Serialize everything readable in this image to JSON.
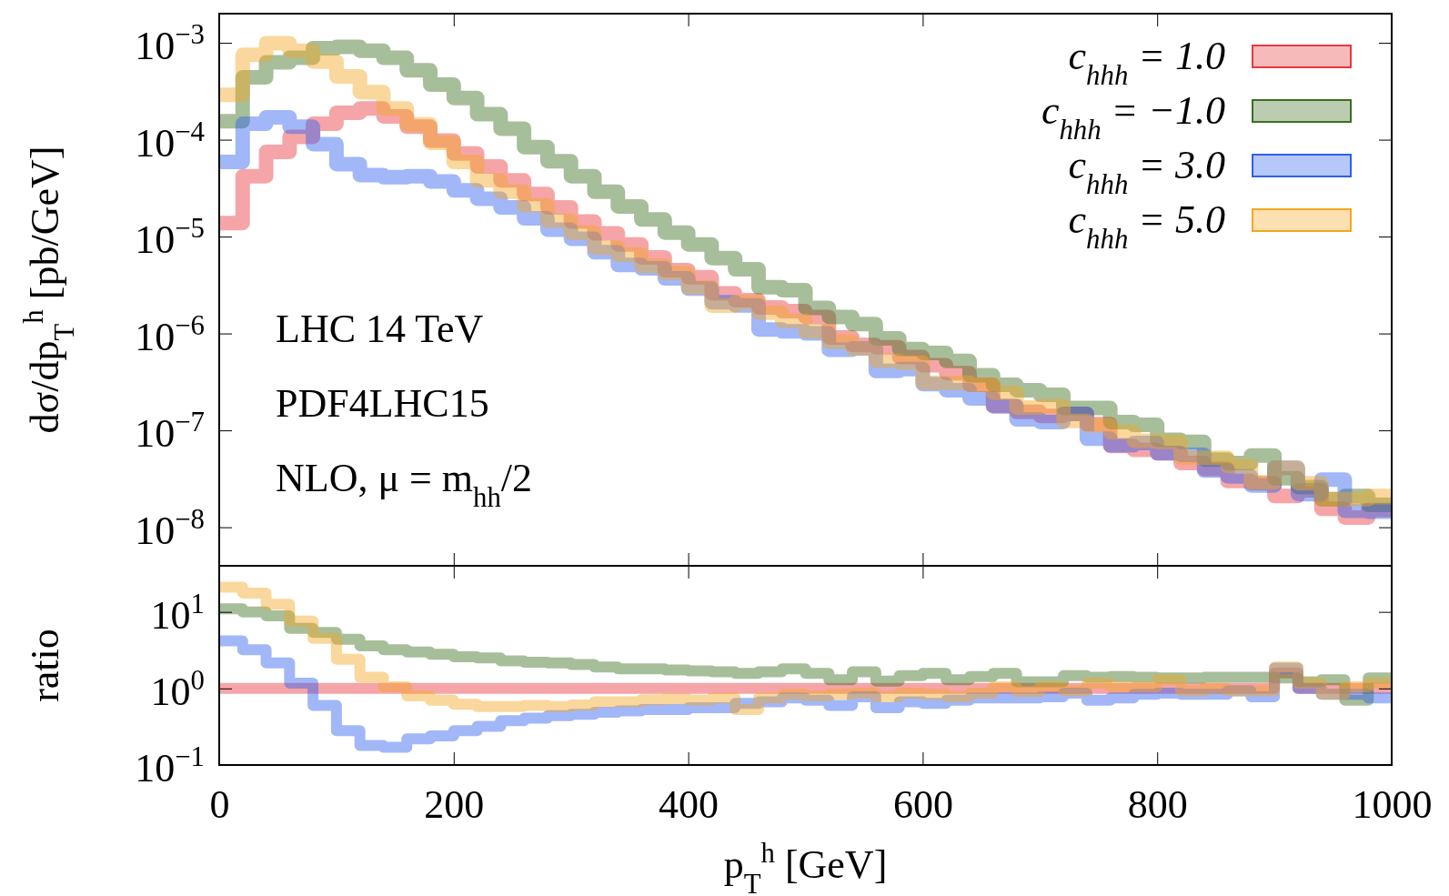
{
  "chart_data": [
    {
      "type": "histogram",
      "ylabel": "dσ/dp$_{T}$$^{h}$ [pb/GeV]",
      "log": true,
      "legend": "top right",
      "tick_labels": "y",
      "annotations": [
        "LHC 14 TeV",
        "PDF4LHC15",
        "NLO, μ = m$_{hh}$/2"
      ],
      "bins": [
        0,
        20,
        40,
        60,
        80,
        100,
        120,
        140,
        160,
        180,
        200,
        220,
        240,
        260,
        280,
        300,
        320,
        340,
        360,
        380,
        400,
        420,
        440,
        460,
        480,
        500,
        520,
        540,
        560,
        580,
        600,
        620,
        640,
        660,
        680,
        700,
        720,
        740,
        760,
        780,
        800,
        820,
        840,
        860,
        880,
        900,
        920,
        940,
        960,
        980,
        1000
      ],
      "xlim": [
        0,
        1000
      ],
      "xticks": [
        0,
        200,
        400,
        600,
        800,
        1000
      ],
      "ylim": [
        4e-09,
        0.002
      ],
      "yticks": [
        {
          "value": 0.001,
          "label": "10$^{−3}$"
        },
        {
          "value": 0.0001,
          "label": "10$^{−4}$"
        },
        {
          "value": 1e-05,
          "label": "10$^{−5}$"
        },
        {
          "value": 1e-06,
          "label": "10$^{−6}$"
        },
        {
          "value": 1e-07,
          "label": "10$^{−7}$"
        },
        {
          "value": 1e-08,
          "label": "10$^{−8}$"
        }
      ],
      "series": [
        {
          "name": "c$_{hhh}$ = 1.0",
          "color": "#e8383d",
          "values": [
            1.38e-05,
            4.2e-05,
            7.5e-05,
            0.000107,
            0.000146,
            0.00019,
            0.00021,
            0.000174,
            0.000136,
            9.8e-05,
            7.2e-05,
            5.3e-05,
            3.8e-05,
            2.75e-05,
            2e-05,
            1.43e-05,
            1.08e-05,
            8.3e-06,
            6.1e-06,
            4.5e-06,
            3.8e-06,
            2.6e-06,
            2.2e-06,
            1.86e-06,
            1.7e-06,
            1.48e-06,
            9.1e-07,
            7.6e-07,
            7.2e-07,
            5.7e-07,
            4.7e-07,
            3.9e-07,
            2.95e-07,
            1.78e-07,
            1.55e-07,
            1.41e-07,
            1.48e-07,
            1.16e-07,
            6.9e-08,
            6.3e-08,
            5.8e-08,
            4.6e-08,
            4e-08,
            3e-08,
            2.85e-08,
            2.1e-08,
            2.4e-08,
            1.55e-08,
            1.26e-08,
            1.5e-08
          ]
        },
        {
          "name": "c$_{hhh}$ = −1.0",
          "color": "#3c6e1e",
          "values": [
            0.000155,
            0.00044,
            0.00063,
            0.0007,
            0.00088,
            0.00091,
            0.00083,
            0.0007,
            0.00052,
            0.00037,
            0.00027,
            0.000183,
            0.00013,
            8.4e-05,
            6e-05,
            4.2e-05,
            2.9e-05,
            2.05e-05,
            1.5e-05,
            1.1e-05,
            8.3e-06,
            6e-06,
            4.6e-06,
            3e-06,
            2.8e-06,
            1.84e-06,
            1.48e-06,
            1.25e-06,
            8.9e-07,
            6.9e-07,
            6.3e-07,
            5.2e-07,
            3.7e-07,
            2.95e-07,
            2.6e-07,
            2.33e-07,
            1.7e-07,
            1.7e-07,
            1.22e-07,
            1.14e-07,
            8e-08,
            7.6e-08,
            5e-08,
            4.6e-08,
            5.5e-08,
            3.2e-08,
            2.6e-08,
            1.95e-08,
            2.1e-08,
            1.7e-08
          ]
        },
        {
          "name": "c$_{hhh}$ = 3.0",
          "color": "#2e5ff0",
          "values": [
            5.9e-05,
            0.000146,
            0.00017,
            0.000136,
            9e-05,
            5.6e-05,
            4.3e-05,
            4.1e-05,
            4.2e-05,
            3.7e-05,
            3e-05,
            2.46e-05,
            2e-05,
            1.54e-05,
            1.18e-05,
            9.5e-06,
            6.9e-06,
            5.1e-06,
            4.7e-06,
            3.7e-06,
            2.9e-06,
            2.1e-06,
            1.95e-06,
            1.1e-06,
            1.05e-06,
            1e-06,
            6.8e-07,
            7e-07,
            4.1e-07,
            4.3e-07,
            3e-07,
            2.6e-07,
            2.14e-07,
            1.78e-07,
            1.3e-07,
            1.22e-07,
            1.48e-07,
            8.2e-08,
            7e-08,
            7.4e-08,
            5.8e-08,
            5.6e-08,
            3.85e-08,
            3.35e-08,
            2.7e-08,
            4.1e-08,
            2.2e-08,
            3.1e-08,
            1.48e-08,
            1.45e-08
          ]
        },
        {
          "name": "c$_{hhh}$ = 5.0",
          "color": "#f5a623",
          "values": [
            0.00029,
            0.00075,
            0.00099,
            0.00083,
            0.00064,
            0.00045,
            0.00031,
            0.00021,
            0.000144,
            9.3e-05,
            5.9e-05,
            3.8e-05,
            2.9e-05,
            2.1e-05,
            1.46e-05,
            1.1e-05,
            7.7e-06,
            6.5e-06,
            5e-06,
            4.2e-06,
            3e-06,
            1.94e-06,
            2.1e-06,
            1.64e-06,
            1.35e-06,
            1.05e-06,
            8.2e-07,
            7e-07,
            5.2e-07,
            5e-07,
            3.1e-07,
            3.1e-07,
            2.95e-07,
            2.45e-07,
            1.72e-07,
            1.78e-07,
            1.25e-07,
            1.13e-07,
            9.6e-08,
            7.8e-08,
            7.6e-08,
            5.2e-08,
            5.2e-08,
            4.3e-08,
            2.9e-08,
            4.1e-08,
            2.85e-08,
            1.95e-08,
            1.95e-08,
            2.1e-08
          ]
        }
      ]
    },
    {
      "type": "histogram",
      "ylabel": "ratio",
      "xlabel": "p$_{T}$$^{h}$ [GeV]",
      "log": true,
      "bins": [
        0,
        20,
        40,
        60,
        80,
        100,
        120,
        140,
        160,
        180,
        200,
        220,
        240,
        260,
        280,
        300,
        320,
        340,
        360,
        380,
        400,
        420,
        440,
        460,
        480,
        500,
        520,
        540,
        560,
        580,
        600,
        620,
        640,
        660,
        680,
        700,
        720,
        740,
        760,
        780,
        800,
        820,
        840,
        860,
        880,
        900,
        920,
        940,
        960,
        980,
        1000
      ],
      "xlim": [
        0,
        1000
      ],
      "xticks": [
        0,
        200,
        400,
        600,
        800,
        1000
      ],
      "ylim": [
        0.1,
        40
      ],
      "yticks": [
        {
          "value": 10,
          "label": "10$^{1}$"
        },
        {
          "value": 1,
          "label": "10$^{0}$"
        },
        {
          "value": 0.1,
          "label": "10$^{−1}$"
        }
      ],
      "series": [
        {
          "color": "#e8383d",
          "values": [
            1,
            1,
            1,
            1,
            1,
            1,
            1,
            1,
            1,
            1,
            1,
            1,
            1,
            1,
            1,
            1,
            1,
            1,
            1,
            1,
            1,
            1,
            1,
            1,
            1,
            1,
            1,
            1,
            1,
            1,
            1,
            1,
            1,
            1,
            1,
            1,
            1,
            1,
            1,
            1,
            1,
            1,
            1,
            1,
            1,
            1.6,
            1,
            1,
            1,
            1
          ]
        },
        {
          "color": "#3c6e1e",
          "values": [
            11,
            10,
            8.9,
            6.1,
            5.4,
            4.4,
            3.6,
            3.2,
            3.0,
            2.8,
            2.6,
            2.5,
            2.3,
            2.2,
            2.15,
            2.05,
            1.9,
            1.8,
            1.8,
            1.75,
            1.7,
            1.65,
            1.57,
            1.65,
            1.8,
            1.57,
            1.3,
            1.65,
            1.25,
            1.47,
            1.57,
            1.3,
            1.43,
            1.57,
            1.22,
            1.22,
            1.47,
            1.4,
            1.43,
            1.4,
            1.37,
            1.37,
            1.4,
            1.4,
            1.4,
            1.37,
            1.22,
            1.3,
            0.7,
            1.37
          ]
        },
        {
          "color": "#2e5ff0",
          "values": [
            4.2,
            3.2,
            2.15,
            1.17,
            0.6,
            0.28,
            0.18,
            0.17,
            0.22,
            0.24,
            0.28,
            0.32,
            0.38,
            0.41,
            0.44,
            0.46,
            0.49,
            0.51,
            0.53,
            0.53,
            0.56,
            0.56,
            0.64,
            0.67,
            0.75,
            0.7,
            0.6,
            0.78,
            0.56,
            0.67,
            0.64,
            0.7,
            0.75,
            0.75,
            0.75,
            0.78,
            0.87,
            0.7,
            0.75,
            0.84,
            0.87,
            0.84,
            0.84,
            0.93,
            0.78,
            1.84,
            1.0,
            0.84,
            0.84,
            0.75
          ]
        },
        {
          "color": "#f5a623",
          "values": [
            21,
            17.6,
            12.6,
            7.6,
            4.5,
            2.4,
            1.4,
            1.05,
            0.8,
            0.7,
            0.62,
            0.58,
            0.58,
            0.6,
            0.58,
            0.61,
            0.67,
            0.67,
            0.71,
            0.73,
            0.7,
            0.75,
            0.53,
            0.75,
            0.84,
            0.8,
            0.84,
            0.87,
            0.78,
            0.87,
            0.84,
            0.78,
            0.87,
            1.05,
            0.91,
            1.05,
            0.93,
            1.17,
            1.05,
            1.05,
            1.3,
            0.93,
            1.0,
            0.93,
            0.93,
            1.9,
            1.17,
            0.84,
            1.05,
            1.17
          ]
        }
      ]
    }
  ]
}
